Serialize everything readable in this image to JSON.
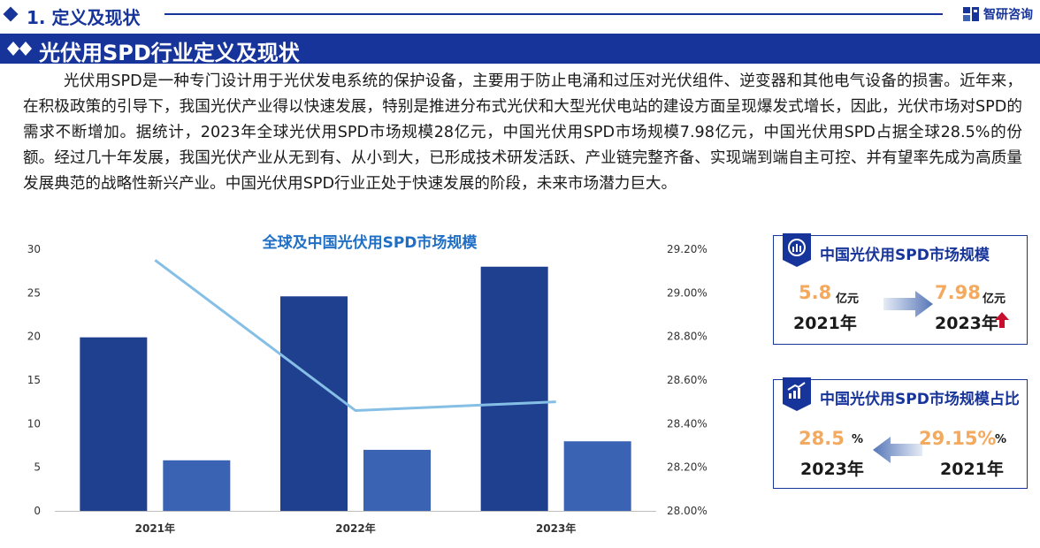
{
  "section": {
    "number_title": "1. 定义及现状"
  },
  "logo": {
    "text": "智研咨询"
  },
  "banner": {
    "title": "光伏用SPD行业定义及现状"
  },
  "paragraph": "光伏用SPD是一种专门设计用于光伏发电系统的保护设备，主要用于防止电涌和过压对光伏组件、逆变器和其他电气设备的损害。近年来，在积极政策的引导下，我国光伏产业得以快速发展，特别是推进分布式光伏和大型光伏电站的建设方面呈现爆发式增长，因此，光伏市场对SPD的需求不断增加。据统计，2023年全球光伏用SPD市场规模28亿元，中国光伏用SPD市场规模7.98亿元，中国光伏用SPD占据全球28.5%的份额。经过几十年发展，我国光伏产业从无到有、从小到大，已形成技术研发活跃、产业链完整齐备、实现端到端自主可控、并有望率先成为高质量发展典范的战略性新兴产业。中国光伏用SPD行业正处于快速发展的阶段，未来市场潜力巨大。",
  "chart_data": {
    "type": "bar",
    "title": "全球及中国光伏用SPD市场规模",
    "categories": [
      "2021年",
      "2022年",
      "2023年"
    ],
    "series": [
      {
        "values": [
          19.9,
          24.6,
          28.0
        ],
        "color": "#1f3f8f",
        "axis": "left"
      },
      {
        "values": [
          5.8,
          7.0,
          7.98
        ],
        "color": "#3a63b3",
        "axis": "left"
      },
      {
        "type": "line",
        "values": [
          29.15,
          28.46,
          28.5
        ],
        "color": "#86bfe6",
        "axis": "right"
      }
    ],
    "ylim": [
      0,
      30
    ],
    "yticks": [
      "0",
      "5",
      "10",
      "15",
      "20",
      "25",
      "30"
    ],
    "y2lim": [
      28.0,
      29.2
    ],
    "y2ticks": [
      "28.00%",
      "28.20%",
      "28.40%",
      "28.60%",
      "28.80%",
      "29.00%",
      "29.20%"
    ],
    "xlabel": "",
    "ylabel": "",
    "grid": false,
    "legend": "none"
  },
  "card_size": {
    "title": "中国光伏用SPD市场规模",
    "from_value": "5.8",
    "from_unit": "亿元",
    "from_year": "2021年",
    "to_value": "7.98",
    "to_unit": "亿元",
    "to_year": "2023年",
    "trend_icon": "up-arrow-icon"
  },
  "card_share": {
    "title": "中国光伏用SPD市场规模占比",
    "left_value": "28.5",
    "left_unit": "%",
    "left_year": "2023年",
    "right_value": "29.15%",
    "right_unit": "%",
    "right_year": "2021年"
  },
  "colors": {
    "brand": "#17349a",
    "bar_dark": "#1f3f8f",
    "bar_light": "#3a63b3",
    "line": "#86bfe6",
    "highlight": "#f3a95e",
    "up_arrow": "#c8102e"
  }
}
